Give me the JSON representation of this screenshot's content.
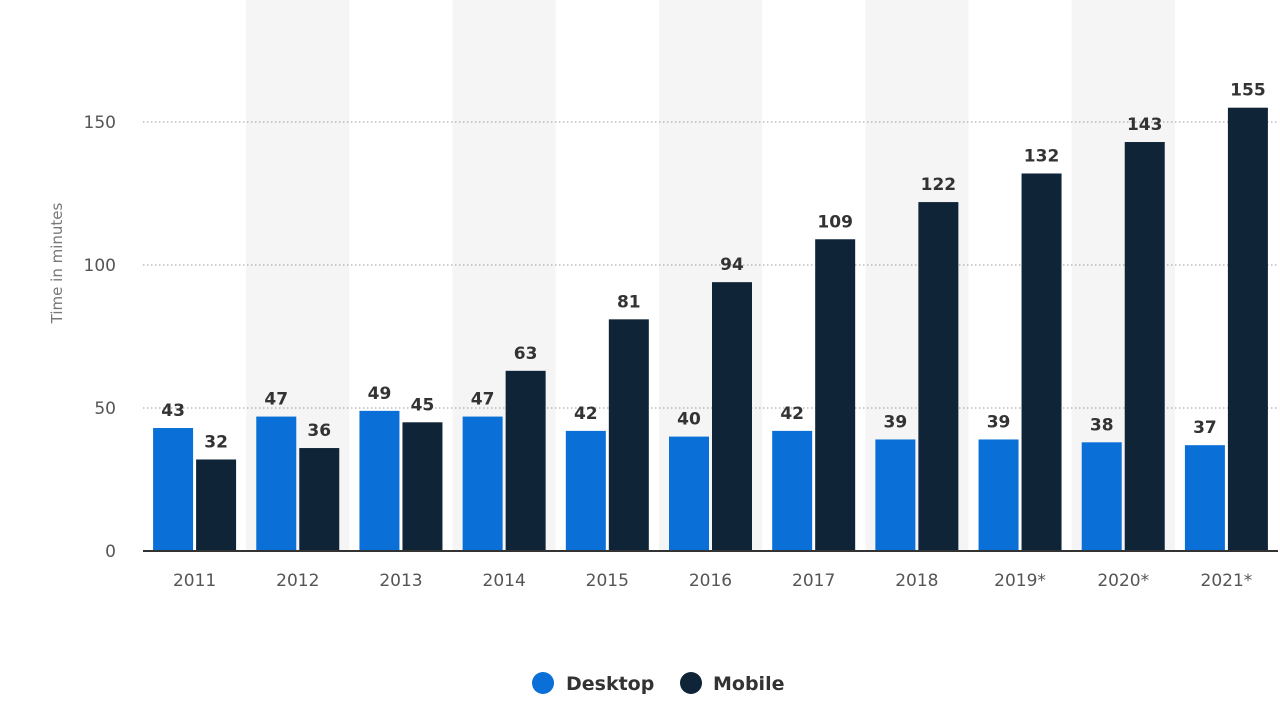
{
  "chart_data": {
    "type": "bar",
    "title": "",
    "xlabel": "",
    "ylabel": "Time in minutes",
    "categories": [
      "2011",
      "2012",
      "2013",
      "2014",
      "2015",
      "2016",
      "2017",
      "2018",
      "2019*",
      "2020*",
      "2021*"
    ],
    "series": [
      {
        "name": "Desktop",
        "color": "#0a6fd6",
        "values": [
          43,
          47,
          49,
          47,
          42,
          40,
          42,
          39,
          39,
          38,
          37
        ]
      },
      {
        "name": "Mobile",
        "color": "#0f2436",
        "values": [
          32,
          36,
          45,
          63,
          81,
          94,
          109,
          122,
          132,
          143,
          155
        ]
      }
    ],
    "ylim": [
      0,
      150
    ],
    "yticks": [
      0,
      50,
      100,
      150
    ],
    "grid": true,
    "legend_position": "bottom-center",
    "band_color": "#f5f5f5",
    "axis_color": "#333333"
  }
}
